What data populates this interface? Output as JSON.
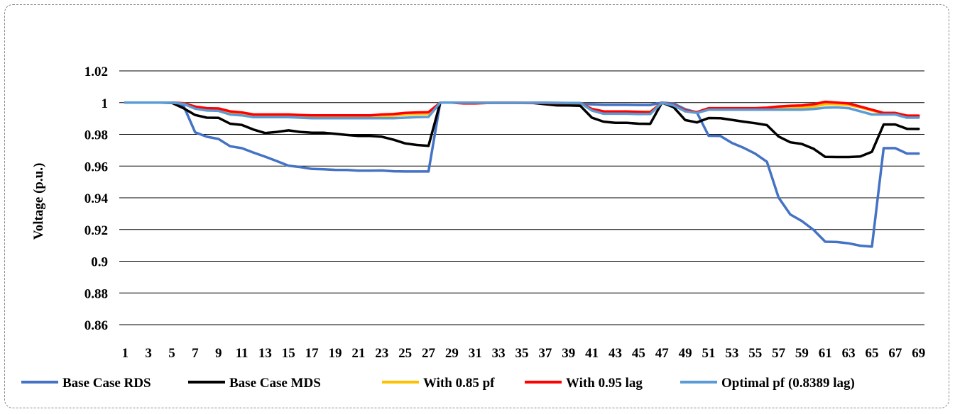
{
  "chart_data": {
    "type": "line",
    "title": "",
    "xlabel": "",
    "ylabel": "Voltage (p.u.)",
    "ylim": [
      0.86,
      1.02
    ],
    "y_ticks": [
      "1.02",
      "1",
      "0.98",
      "0.96",
      "0.94",
      "0.92",
      "0.9",
      "0.88",
      "0.86"
    ],
    "x_ticks": [
      "1",
      "3",
      "5",
      "7",
      "9",
      "11",
      "13",
      "15",
      "17",
      "19",
      "21",
      "23",
      "25",
      "27",
      "29",
      "31",
      "33",
      "35",
      "37",
      "39",
      "41",
      "43",
      "45",
      "47",
      "49",
      "51",
      "53",
      "55",
      "57",
      "59",
      "61",
      "63",
      "65",
      "67",
      "69"
    ],
    "x": [
      1,
      2,
      3,
      4,
      5,
      6,
      7,
      8,
      9,
      10,
      11,
      12,
      13,
      14,
      15,
      16,
      17,
      18,
      19,
      20,
      21,
      22,
      23,
      24,
      25,
      26,
      27,
      28,
      29,
      30,
      31,
      32,
      33,
      34,
      35,
      36,
      37,
      38,
      39,
      40,
      41,
      42,
      43,
      44,
      45,
      46,
      47,
      48,
      49,
      50,
      51,
      52,
      53,
      54,
      55,
      56,
      57,
      58,
      59,
      60,
      61,
      62,
      63,
      64,
      65,
      66,
      67,
      68,
      69
    ],
    "grid": "horizontal",
    "legend_position": "bottom",
    "series": [
      {
        "name": "Base Case RDS",
        "color": "#4472C4",
        "values": [
          1,
          1,
          1,
          1,
          0.9999,
          0.9981,
          0.9813,
          0.9785,
          0.9771,
          0.9725,
          0.9713,
          0.9685,
          0.9659,
          0.9631,
          0.9602,
          0.9594,
          0.9582,
          0.958,
          0.9576,
          0.9575,
          0.9571,
          0.9571,
          0.9572,
          0.9567,
          0.9566,
          0.9566,
          0.9566,
          1,
          1,
          1,
          1,
          0.9999,
          0.9999,
          0.9999,
          0.9998,
          0.9997,
          0.9996,
          0.9994,
          0.9993,
          0.9993,
          0.9989,
          0.9986,
          0.9986,
          0.9986,
          0.9985,
          0.9985,
          1,
          0.9994,
          0.9958,
          0.9938,
          0.9791,
          0.979,
          0.9746,
          0.9715,
          0.9678,
          0.9627,
          0.9401,
          0.9295,
          0.9253,
          0.9197,
          0.9123,
          0.9121,
          0.9113,
          0.9098,
          0.9092,
          0.9713,
          0.9713,
          0.9679,
          0.9679
        ]
      },
      {
        "name": "Base Case MDS",
        "color": "#000000",
        "values": [
          1,
          1,
          1,
          1,
          0.9999,
          0.9965,
          0.9922,
          0.9905,
          0.9904,
          0.9867,
          0.9859,
          0.983,
          0.9808,
          0.9815,
          0.9825,
          0.9815,
          0.981,
          0.981,
          0.9803,
          0.9796,
          0.979,
          0.979,
          0.9785,
          0.9766,
          0.9743,
          0.9733,
          0.9727,
          1,
          1,
          1,
          1,
          0.9999,
          0.9999,
          0.9999,
          0.9998,
          0.9998,
          0.999,
          0.9983,
          0.9982,
          0.998,
          0.9905,
          0.988,
          0.9873,
          0.9873,
          0.9867,
          0.9866,
          1,
          0.9971,
          0.989,
          0.9875,
          0.9903,
          0.9902,
          0.9891,
          0.988,
          0.987,
          0.9858,
          0.9786,
          0.975,
          0.9739,
          0.9709,
          0.9658,
          0.9657,
          0.9657,
          0.966,
          0.969,
          0.9862,
          0.9862,
          0.9835,
          0.9834
        ]
      },
      {
        "name": "With 0.85 pf",
        "color": "#FFC000",
        "values": [
          1,
          1,
          1,
          1,
          1,
          0.9995,
          0.997,
          0.996,
          0.9958,
          0.994,
          0.9935,
          0.992,
          0.992,
          0.992,
          0.992,
          0.9918,
          0.9915,
          0.9915,
          0.9915,
          0.9915,
          0.9915,
          0.9915,
          0.9916,
          0.9918,
          0.9925,
          0.9928,
          0.993,
          1,
          1,
          1,
          1,
          0.9999,
          0.9999,
          0.9999,
          0.9999,
          0.9998,
          0.9998,
          0.9997,
          0.9997,
          0.9997,
          0.996,
          0.9945,
          0.9944,
          0.9944,
          0.9942,
          0.9942,
          1,
          0.9985,
          0.995,
          0.994,
          0.996,
          0.996,
          0.996,
          0.996,
          0.996,
          0.996,
          0.9965,
          0.9968,
          0.997,
          0.9975,
          0.999,
          0.999,
          0.9985,
          0.997,
          0.995,
          0.9932,
          0.9932,
          0.9915,
          0.9915
        ]
      },
      {
        "name": "With 0.95 lag",
        "color": "#FF0000",
        "values": [
          1,
          1,
          1,
          1,
          1,
          0.9996,
          0.9975,
          0.9965,
          0.9963,
          0.9945,
          0.9938,
          0.9925,
          0.9925,
          0.9925,
          0.9925,
          0.9922,
          0.992,
          0.992,
          0.992,
          0.992,
          0.992,
          0.992,
          0.9925,
          0.9928,
          0.9935,
          0.9938,
          0.994,
          1,
          1,
          0.9995,
          0.9995,
          0.9998,
          0.9999,
          0.9999,
          0.9999,
          0.9998,
          0.9998,
          0.9997,
          0.9997,
          0.9997,
          0.996,
          0.9945,
          0.9944,
          0.9944,
          0.9942,
          0.994,
          1,
          0.9985,
          0.995,
          0.994,
          0.9965,
          0.9965,
          0.9965,
          0.9965,
          0.9965,
          0.9968,
          0.9975,
          0.998,
          0.9982,
          0.999,
          1.0005,
          1.0,
          0.9995,
          0.9975,
          0.9955,
          0.9935,
          0.9935,
          0.9918,
          0.9918
        ]
      },
      {
        "name": "Optimal pf (0.8389 lag)",
        "color": "#5B9BD5",
        "values": [
          1,
          1,
          1,
          1,
          1,
          0.9992,
          0.9962,
          0.995,
          0.9948,
          0.9925,
          0.992,
          0.9908,
          0.9908,
          0.9908,
          0.9908,
          0.9905,
          0.9902,
          0.9902,
          0.9902,
          0.9902,
          0.9902,
          0.9902,
          0.9902,
          0.9902,
          0.9905,
          0.9908,
          0.991,
          1,
          1,
          1,
          1,
          0.9999,
          0.9999,
          0.9999,
          0.9999,
          1,
          1,
          0.9999,
          0.9998,
          0.9998,
          0.995,
          0.993,
          0.993,
          0.993,
          0.9928,
          0.9928,
          1,
          0.9982,
          0.9945,
          0.9935,
          0.9955,
          0.9955,
          0.9955,
          0.9955,
          0.9955,
          0.9955,
          0.9955,
          0.9955,
          0.9955,
          0.996,
          0.9968,
          0.997,
          0.9965,
          0.9945,
          0.9925,
          0.9925,
          0.9925,
          0.9905,
          0.9905
        ]
      }
    ]
  }
}
